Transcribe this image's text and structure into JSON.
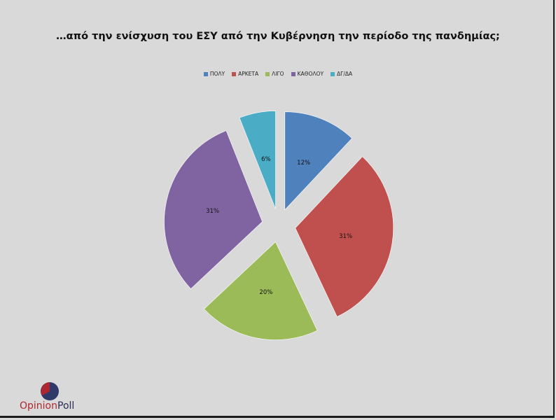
{
  "chart_data": {
    "type": "pie",
    "title": "…από την ενίσχυση του ΕΣΥ από την Κυβέρνηση την περίοδο της πανδημίας;",
    "categories": [
      "ΠΟΛΥ",
      "ΑΡΚΕΤΑ",
      "ΛΙΓΟ",
      "ΚΑΘΟΛΟΥ",
      "ΔΓ/ΔΑ"
    ],
    "values": [
      12,
      31,
      20,
      31,
      6
    ],
    "labels": [
      "12%",
      "31%",
      "20%",
      "31%",
      "6%"
    ],
    "colors": [
      "#4f81bd",
      "#c0504d",
      "#9bbb59",
      "#8064a2",
      "#4bacc6"
    ],
    "legend": "top",
    "exploded": true
  },
  "logo": {
    "part1": "Opinion",
    "part2": "Poll"
  }
}
